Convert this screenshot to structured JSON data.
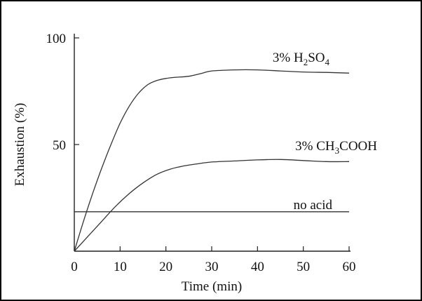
{
  "chart_data": {
    "type": "line",
    "xlabel": "Time (min)",
    "ylabel": "Exhaustion (%)",
    "xlim": [
      0,
      60
    ],
    "ylim": [
      0,
      100
    ],
    "xticks": [
      0,
      10,
      20,
      30,
      40,
      50,
      60
    ],
    "yticks": [
      50,
      100
    ],
    "grid": false,
    "series": [
      {
        "name": "3% H₂SO₄",
        "label_base": "3% H",
        "label_parts": [
          {
            "text": "3% H",
            "sub": false
          },
          {
            "text": "2",
            "sub": true
          },
          {
            "text": "SO",
            "sub": false
          },
          {
            "text": "4",
            "sub": true
          }
        ],
        "x": [
          0,
          2,
          4,
          6,
          8,
          10,
          12,
          14,
          16,
          18,
          20,
          22,
          25,
          28,
          30,
          35,
          40,
          45,
          50,
          55,
          60
        ],
        "y": [
          0,
          14,
          27,
          39,
          50,
          60,
          68,
          74,
          78,
          80,
          81,
          81.5,
          82,
          83.5,
          84.5,
          85,
          85,
          84.5,
          84,
          83.8,
          83.5
        ]
      },
      {
        "name": "3% CH₃COOH",
        "label_parts": [
          {
            "text": "3% CH",
            "sub": false
          },
          {
            "text": "3",
            "sub": true
          },
          {
            "text": "COOH",
            "sub": false
          }
        ],
        "x": [
          0,
          3,
          6,
          9,
          12,
          15,
          18,
          21,
          24,
          27,
          30,
          35,
          40,
          45,
          50,
          55,
          60
        ],
        "y": [
          0,
          7,
          14,
          21,
          27,
          32,
          36,
          38.5,
          40,
          41,
          41.8,
          42.3,
          42.8,
          43,
          42.5,
          42,
          42
        ]
      },
      {
        "name": "no acid",
        "label_parts": [
          {
            "text": "no acid",
            "sub": false
          }
        ],
        "x": [
          0,
          60
        ],
        "y": [
          18.5,
          18.5
        ]
      }
    ]
  }
}
